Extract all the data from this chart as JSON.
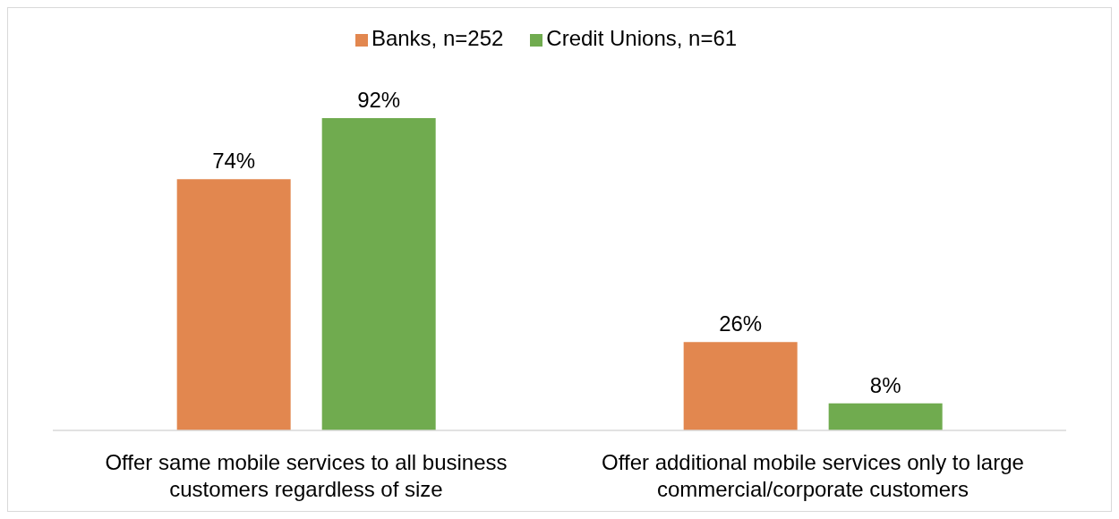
{
  "chart_data": {
    "type": "bar",
    "categories": [
      "Offer same mobile services to all business customers regardless of size",
      "Offer additional mobile services only to large commercial/corporate customers"
    ],
    "series": [
      {
        "name": "Banks, n=252",
        "color": "#e2874f",
        "values": [
          74,
          26
        ],
        "value_labels": [
          "74%",
          "26%"
        ]
      },
      {
        "name": "Credit Unions, n=61",
        "color": "#70ab4f",
        "values": [
          92,
          8
        ],
        "value_labels": [
          "92%",
          "8%"
        ]
      }
    ],
    "legend": "top",
    "grid": false
  }
}
